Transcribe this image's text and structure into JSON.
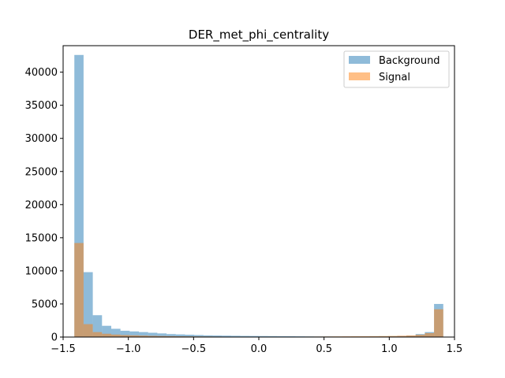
{
  "chart_data": {
    "type": "bar",
    "subtype": "overlaid-histogram",
    "title": "DER_met_phi_centrality",
    "xlabel": "",
    "ylabel": "",
    "xlim": [
      -1.5,
      1.5
    ],
    "ylim": [
      0,
      44000
    ],
    "xticks": [
      -1.5,
      -1.0,
      -0.5,
      0.0,
      0.5,
      1.0,
      1.5
    ],
    "xtick_labels": [
      "−1.5",
      "−1.0",
      "−0.5",
      "0.0",
      "0.5",
      "1.0",
      "1.5"
    ],
    "yticks": [
      0,
      5000,
      10000,
      15000,
      20000,
      25000,
      30000,
      35000,
      40000
    ],
    "yticks_labels": [
      "0",
      "5000",
      "10000",
      "15000",
      "20000",
      "25000",
      "30000",
      "35000",
      "40000"
    ],
    "grid": false,
    "legend_position": "top-right",
    "bins": {
      "start": -1.414,
      "end": 1.414,
      "count": 40
    },
    "series": [
      {
        "name": "Background",
        "color": "#1f77b4",
        "alpha": 0.5,
        "values": [
          42600,
          9800,
          3300,
          1700,
          1250,
          950,
          850,
          750,
          650,
          550,
          450,
          400,
          350,
          300,
          250,
          230,
          210,
          190,
          170,
          160,
          150,
          140,
          130,
          120,
          110,
          100,
          90,
          90,
          80,
          80,
          80,
          80,
          90,
          100,
          120,
          150,
          200,
          450,
          750,
          5000
        ]
      },
      {
        "name": "Signal",
        "color": "#ff7f0e",
        "alpha": 0.5,
        "values": [
          14200,
          1950,
          750,
          500,
          380,
          300,
          260,
          220,
          180,
          150,
          130,
          110,
          100,
          90,
          80,
          70,
          60,
          55,
          50,
          50,
          50,
          50,
          50,
          60,
          60,
          70,
          80,
          90,
          100,
          110,
          120,
          130,
          140,
          150,
          170,
          200,
          250,
          350,
          600,
          4200
        ]
      }
    ]
  }
}
